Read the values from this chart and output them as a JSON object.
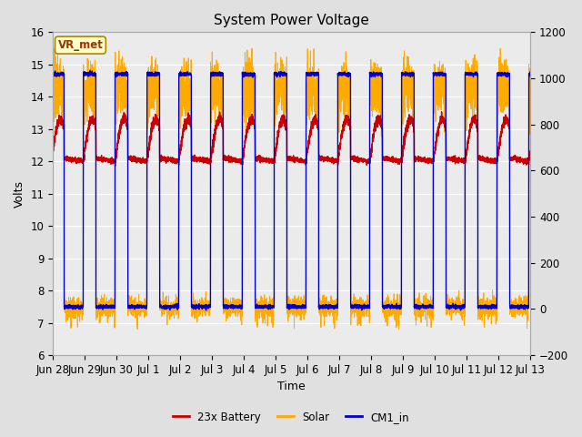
{
  "title": "System Power Voltage",
  "xlabel": "Time",
  "ylabel_left": "Volts",
  "ylim_left": [
    6.0,
    16.0
  ],
  "ylim_right": [
    -200,
    1200
  ],
  "x_tick_labels": [
    "Jun 28",
    "Jun 29",
    "Jun 30",
    "Jul 1",
    "Jul 2",
    "Jul 3",
    "Jul 4",
    "Jul 5",
    "Jul 6",
    "Jul 7",
    "Jul 8",
    "Jul 9",
    "Jul 10",
    "Jul 11",
    "Jul 12",
    "Jul 13"
  ],
  "fig_bg_color": "#e0e0e0",
  "plot_bg_color": "#ebebeb",
  "grid_color": "#ffffff",
  "title_fontsize": 11,
  "axis_fontsize": 9,
  "legend_colors": [
    "#cc0000",
    "#ffaa00",
    "#0000cc"
  ],
  "annotation_text": "VR_met",
  "annotation_color": "#993300",
  "annotation_bg": "#ffffcc",
  "annotation_edge": "#aa8800",
  "cm1_low": 7.5,
  "cm1_high": 14.7,
  "battery_night": 12.0,
  "battery_day_peak": 13.3,
  "solar_day_peak": 15.2,
  "solar_night": 7.5
}
